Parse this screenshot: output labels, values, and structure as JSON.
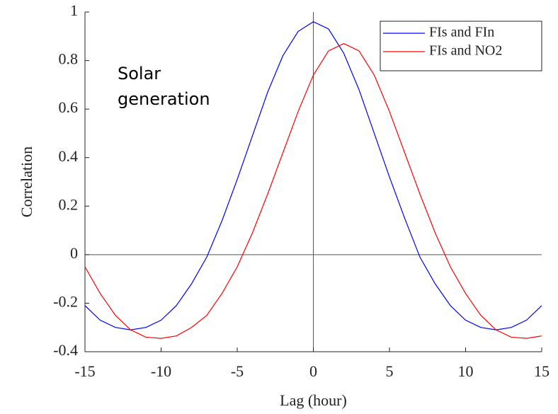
{
  "chart_data": {
    "type": "line",
    "xlabel": "Lag (hour)",
    "ylabel": "Correlation",
    "annotation": "Solar generation",
    "x": [
      -15,
      -14,
      -13,
      -12,
      -11,
      -10,
      -9,
      -8,
      -7,
      -6,
      -5,
      -4,
      -3,
      -2,
      -1,
      0,
      1,
      2,
      3,
      4,
      5,
      6,
      7,
      8,
      9,
      10,
      11,
      12,
      13,
      14,
      15
    ],
    "series": [
      {
        "name": "FIs and FIn",
        "color": "#0000ff",
        "values": [
          -0.21,
          -0.27,
          -0.3,
          -0.31,
          -0.3,
          -0.27,
          -0.21,
          -0.12,
          -0.01,
          0.14,
          0.31,
          0.49,
          0.67,
          0.82,
          0.92,
          0.96,
          0.93,
          0.83,
          0.68,
          0.5,
          0.32,
          0.15,
          -0.01,
          -0.12,
          -0.21,
          -0.27,
          -0.3,
          -0.31,
          -0.3,
          -0.27,
          -0.21
        ]
      },
      {
        "name": "FIs and NO2",
        "color": "#ff0000",
        "values": [
          -0.05,
          -0.16,
          -0.25,
          -0.31,
          -0.34,
          -0.345,
          -0.335,
          -0.3,
          -0.25,
          -0.16,
          -0.05,
          0.09,
          0.25,
          0.42,
          0.59,
          0.74,
          0.84,
          0.87,
          0.84,
          0.74,
          0.59,
          0.42,
          0.25,
          0.09,
          -0.05,
          -0.16,
          -0.25,
          -0.31,
          -0.34,
          -0.345,
          -0.335
        ]
      }
    ],
    "xlim": [
      -15,
      15
    ],
    "xticks": [
      -15,
      -10,
      -5,
      0,
      5,
      10,
      15
    ],
    "ylim": [
      -0.4,
      1
    ],
    "yticks": [
      -0.4,
      -0.2,
      0,
      0.2,
      0.4,
      0.6,
      0.8,
      1
    ],
    "grid": false,
    "zero_lines": true,
    "legend": "upper right"
  }
}
